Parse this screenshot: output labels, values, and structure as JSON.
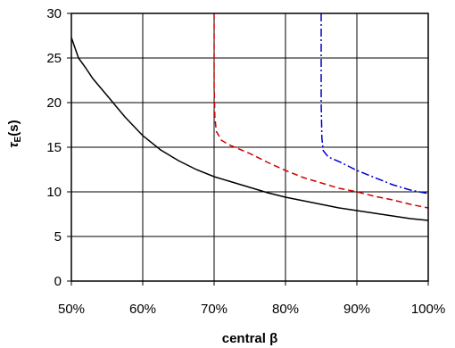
{
  "chart_data": {
    "type": "line",
    "xlabel": "central β",
    "ylabel": "τE(s)",
    "ylabel_main": "τ",
    "ylabel_sub": "E",
    "ylabel_rest": "(s)",
    "xlim": [
      50,
      100
    ],
    "ylim": [
      0,
      30
    ],
    "x_ticks": [
      "50%",
      "60%",
      "70%",
      "80%",
      "90%",
      "100%"
    ],
    "y_ticks": [
      "0",
      "5",
      "10",
      "15",
      "20",
      "25",
      "30"
    ],
    "grid": true,
    "legend": "none",
    "series": [
      {
        "color": "#000000",
        "style": "solid",
        "x": [
          50,
          51,
          52,
          53,
          55,
          57.5,
          60,
          62.5,
          65,
          67.5,
          70,
          72.5,
          75,
          77.5,
          80,
          82.5,
          85,
          87.5,
          90,
          92.5,
          95,
          97.5,
          100
        ],
        "y": [
          27.3,
          25.0,
          23.9,
          22.7,
          20.8,
          18.4,
          16.3,
          14.7,
          13.5,
          12.5,
          11.7,
          11.1,
          10.5,
          9.9,
          9.4,
          9.0,
          8.6,
          8.2,
          7.9,
          7.6,
          7.3,
          7.0,
          6.8
        ]
      },
      {
        "color": "#cc0000",
        "style": "dashed",
        "x": [
          70,
          70,
          70.1,
          70.3,
          71,
          72,
          73.5,
          75,
          77.5,
          80,
          82.5,
          85,
          87.5,
          90,
          92.5,
          95,
          97.5,
          100
        ],
        "y": [
          30,
          22,
          18.5,
          16.8,
          15.8,
          15.3,
          14.8,
          14.3,
          13.3,
          12.4,
          11.6,
          11.0,
          10.4,
          10.0,
          9.5,
          9.1,
          8.6,
          8.2
        ]
      },
      {
        "color": "#0000cc",
        "style": "dash-dot",
        "x": [
          85,
          85,
          85.1,
          85.3,
          86,
          87.5,
          89,
          90,
          92.5,
          95,
          97.5,
          100
        ],
        "y": [
          30,
          20,
          16,
          14.6,
          13.9,
          13.4,
          12.8,
          12.4,
          11.6,
          10.8,
          10.2,
          9.8
        ]
      }
    ]
  }
}
